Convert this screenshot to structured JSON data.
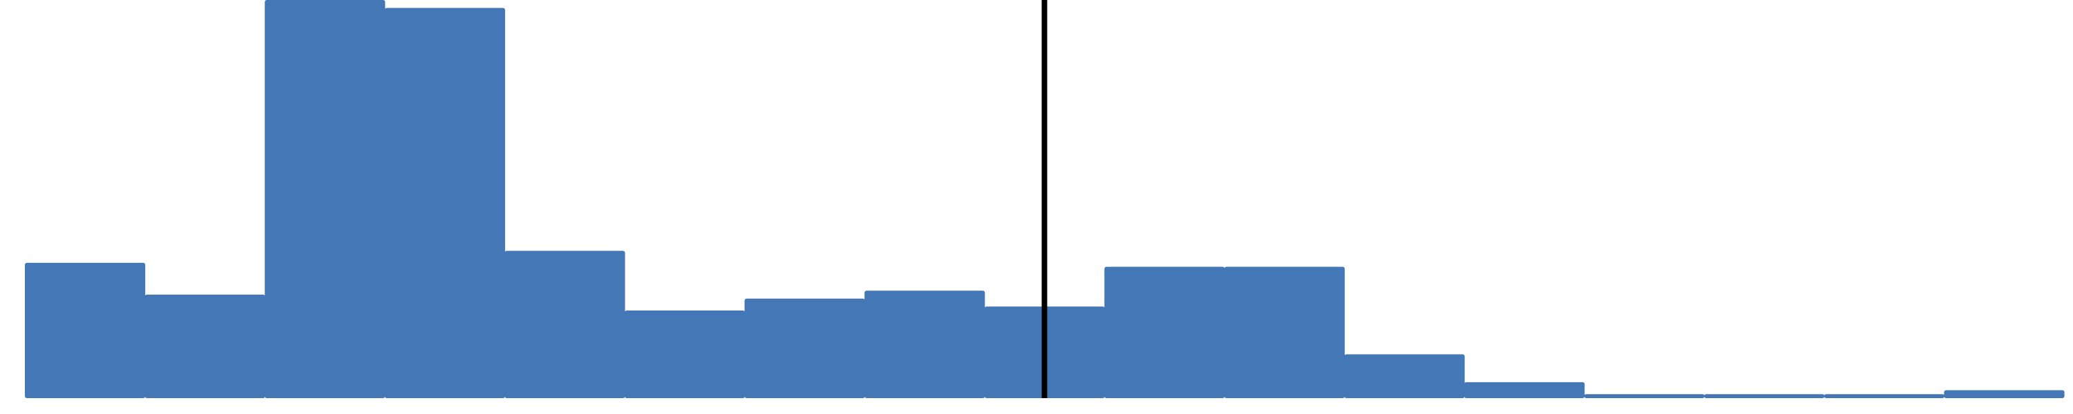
{
  "chart_data": {
    "type": "bar",
    "title": "",
    "xlabel": "",
    "ylabel": "",
    "bar_color": "#4377b6",
    "marker_color": "#000000",
    "ylim": [
      0,
      100
    ],
    "values": [
      34,
      26,
      100,
      98,
      37,
      22,
      25,
      27,
      23,
      33,
      33,
      11,
      4,
      1,
      1,
      1,
      2
    ],
    "vertical_marker_bin": 8.5,
    "grid": false,
    "legend": "none"
  }
}
